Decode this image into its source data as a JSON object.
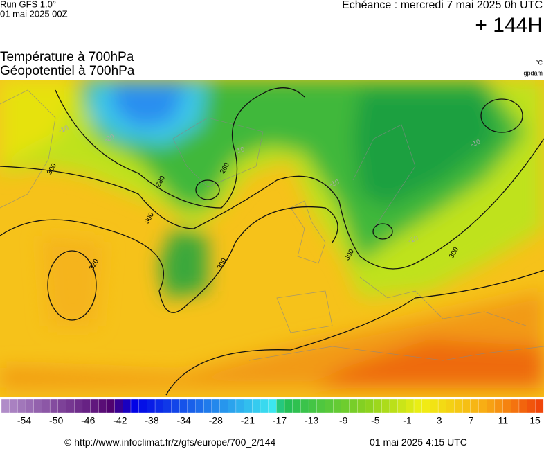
{
  "header": {
    "run": "Run GFS 1.0°",
    "run_date": "01 mai 2025 00Z",
    "valid": "Echéance : mercredi 7 mai 2025 0h UTC",
    "lead": "+ 144H"
  },
  "titles": {
    "temperature": "Température à 700hPa",
    "geopotential": "Géopotentiel à 700hPa",
    "temp_unit": "°C",
    "geo_unit": "gpdam"
  },
  "contour_labels": [
    "300",
    "280",
    "260",
    "300",
    "300",
    "320",
    "300",
    "300",
    "-10",
    "-20",
    "10",
    "-10",
    "-10",
    "-10"
  ],
  "colorbar": {
    "labels": [
      -54,
      -50,
      -46,
      -42,
      -38,
      -34,
      -28,
      -21,
      -17,
      -13,
      -9,
      -5,
      -1,
      3,
      7,
      11,
      15
    ]
  },
  "footer": {
    "source": "© http://www.infoclimat.fr/z/gfs/europe/700_2/144",
    "generated": "01 mai 2025  4:15 UTC"
  }
}
